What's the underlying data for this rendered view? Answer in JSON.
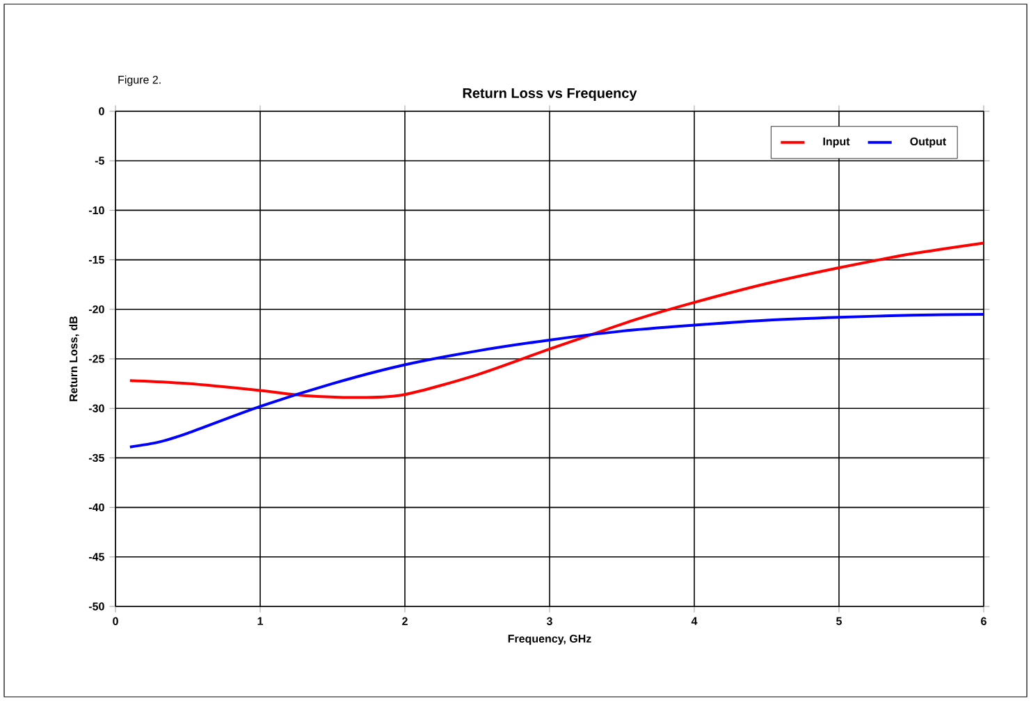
{
  "chart_data": {
    "type": "line",
    "title": "Return Loss vs Frequency",
    "xlabel": "Frequency, GHz",
    "ylabel": "Return Loss, dB",
    "annotations": [
      "Figure 2."
    ],
    "series": [
      {
        "name": "Input",
        "color": "#ff0000",
        "x": [
          0.1,
          0.5,
          1,
          1.3,
          1.7,
          2,
          2.5,
          3,
          3.3,
          3.6,
          4,
          4.5,
          5,
          5.5,
          6
        ],
        "values": [
          -27.2,
          -27.5,
          -28.2,
          -28.7,
          -28.9,
          -28.6,
          -26.6,
          -24.0,
          -22.5,
          -21.0,
          -19.3,
          -17.4,
          -15.8,
          -14.4,
          -13.3
        ]
      },
      {
        "name": "Output",
        "color": "#0000ff",
        "x": [
          0.1,
          0.3,
          0.5,
          1,
          1.5,
          2,
          2.5,
          3,
          3.5,
          4,
          4.5,
          5,
          5.5,
          6
        ],
        "values": [
          -33.9,
          -33.4,
          -32.5,
          -29.8,
          -27.5,
          -25.6,
          -24.2,
          -23.1,
          -22.2,
          -21.6,
          -21.1,
          -20.8,
          -20.6,
          -20.5
        ]
      }
    ],
    "xlim": [
      0,
      6
    ],
    "xticks": [
      0,
      1,
      2,
      3,
      4,
      5,
      6
    ],
    "ylim": [
      -50,
      0
    ],
    "yticks": [
      -50,
      -45,
      -40,
      -35,
      -30,
      -25,
      -20,
      -15,
      -10,
      -5,
      0
    ],
    "grid": true,
    "legend": "top right"
  }
}
